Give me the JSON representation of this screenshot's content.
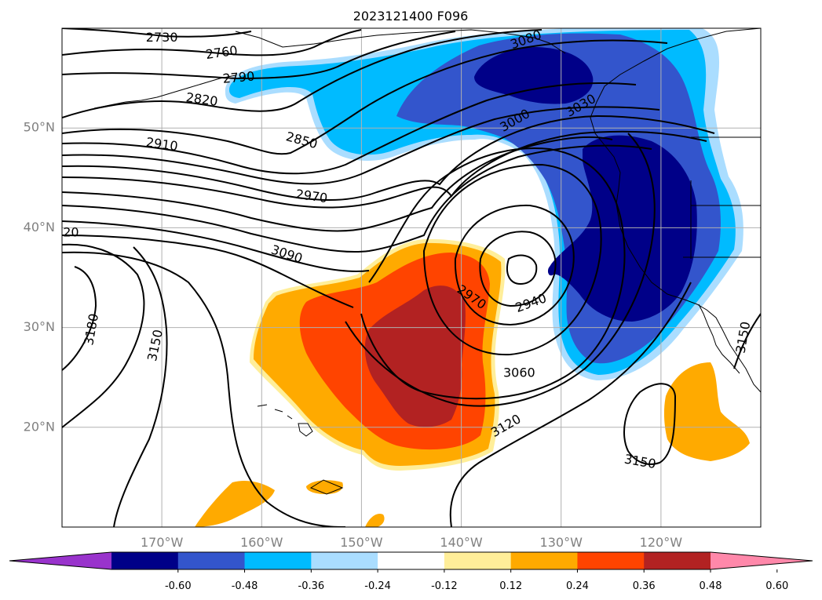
{
  "title": "2023121400 F096",
  "map": {
    "lat_labels": [
      "50°N",
      "40°N",
      "30°N",
      "20°N"
    ],
    "lon_labels": [
      "170°W",
      "160°W",
      "150°W",
      "140°W",
      "130°W",
      "120°W"
    ],
    "grid": true,
    "projection": "plate carree",
    "extent": {
      "lon_min": -180,
      "lon_max": -110,
      "lat_min": 10,
      "lat_max": 60
    }
  },
  "contour_labels": [
    {
      "text": "2730",
      "lon": -170.0,
      "lat": 59.0,
      "rot": 0
    },
    {
      "text": "2760",
      "lon": -164.0,
      "lat": 57.5,
      "rot": -8
    },
    {
      "text": "2790",
      "lon": -162.3,
      "lat": 55.0,
      "rot": -5
    },
    {
      "text": "2820",
      "lon": -166.0,
      "lat": 52.8,
      "rot": 8
    },
    {
      "text": "2910",
      "lon": -170.0,
      "lat": 48.3,
      "rot": 8
    },
    {
      "text": "2850",
      "lon": -156.0,
      "lat": 48.7,
      "rot": 15
    },
    {
      "text": "2970",
      "lon": -155.0,
      "lat": 43.1,
      "rot": 8
    },
    {
      "text": "3090",
      "lon": -157.5,
      "lat": 37.3,
      "rot": 18
    },
    {
      "text": "20",
      "lon": -179.1,
      "lat": 39.5,
      "rot": 0
    },
    {
      "text": "3180",
      "lon": -177.0,
      "lat": 29.8,
      "rot": -80
    },
    {
      "text": "3150",
      "lon": -170.6,
      "lat": 28.2,
      "rot": -78
    },
    {
      "text": "2970",
      "lon": -139.0,
      "lat": 33.0,
      "rot": 35
    },
    {
      "text": "2940",
      "lon": -133.0,
      "lat": 32.4,
      "rot": -20
    },
    {
      "text": "3000",
      "lon": -134.6,
      "lat": 50.7,
      "rot": -30
    },
    {
      "text": "3030",
      "lon": -128.0,
      "lat": 52.2,
      "rot": -30
    },
    {
      "text": "3080",
      "lon": -133.5,
      "lat": 58.8,
      "rot": -20
    },
    {
      "text": "3060",
      "lon": -134.2,
      "lat": 25.4,
      "rot": 0
    },
    {
      "text": "3120",
      "lon": -135.5,
      "lat": 20.1,
      "rot": -30
    },
    {
      "text": "3150",
      "lon": -122.1,
      "lat": 16.5,
      "rot": 10
    },
    {
      "text": "3150",
      "lon": -111.7,
      "lat": 29.0,
      "rot": -80
    }
  ],
  "colorbar": {
    "colors": [
      "#9933cc",
      "#000088",
      "#3355cc",
      "#00bbff",
      "#aaddff",
      "#ffffff",
      "#ffee99",
      "#ffaa00",
      "#ff4400",
      "#b22222",
      "#ff88aa"
    ],
    "ticks": [
      "-0.60",
      "-0.48",
      "-0.36",
      "-0.24",
      "-0.12",
      "0.12",
      "0.24",
      "0.36",
      "0.48",
      "0.60"
    ]
  }
}
